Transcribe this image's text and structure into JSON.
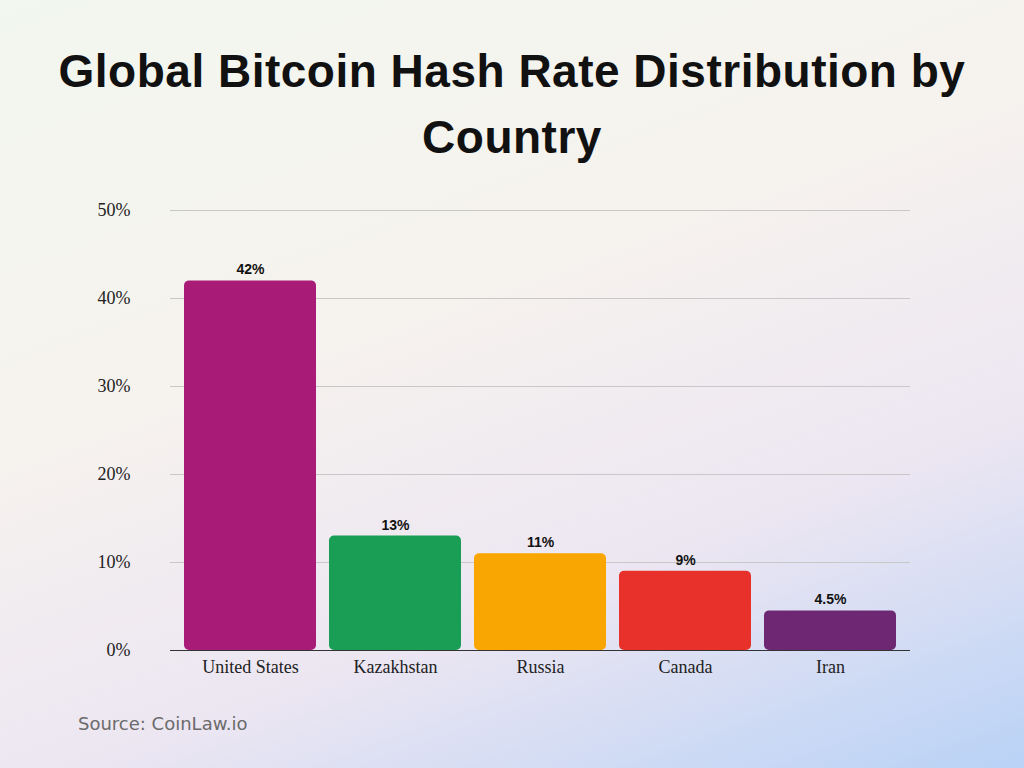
{
  "chart_data": {
    "type": "bar",
    "title": "Global Bitcoin Hash Rate Distribution by Country",
    "categories": [
      "United States",
      "Kazakhstan",
      "Russia",
      "Canada",
      "Iran"
    ],
    "values": [
      42,
      13,
      11,
      9,
      4.5
    ],
    "value_labels": [
      "42%",
      "13%",
      "11%",
      "9%",
      "4.5%"
    ],
    "colors": [
      "#a81c78",
      "#1a9e55",
      "#f9a602",
      "#e8312a",
      "#6e2873"
    ],
    "ylim": [
      0,
      50
    ],
    "yticks": [
      {
        "value": 0,
        "label": "0%"
      },
      {
        "value": 10,
        "label": "10%"
      },
      {
        "value": 20,
        "label": "20%"
      },
      {
        "value": 30,
        "label": "30%"
      },
      {
        "value": 40,
        "label": "40%"
      },
      {
        "value": 50,
        "label": "50%"
      }
    ],
    "grid": true,
    "data_labels": true,
    "caption": "Source: CoinLaw.io"
  }
}
